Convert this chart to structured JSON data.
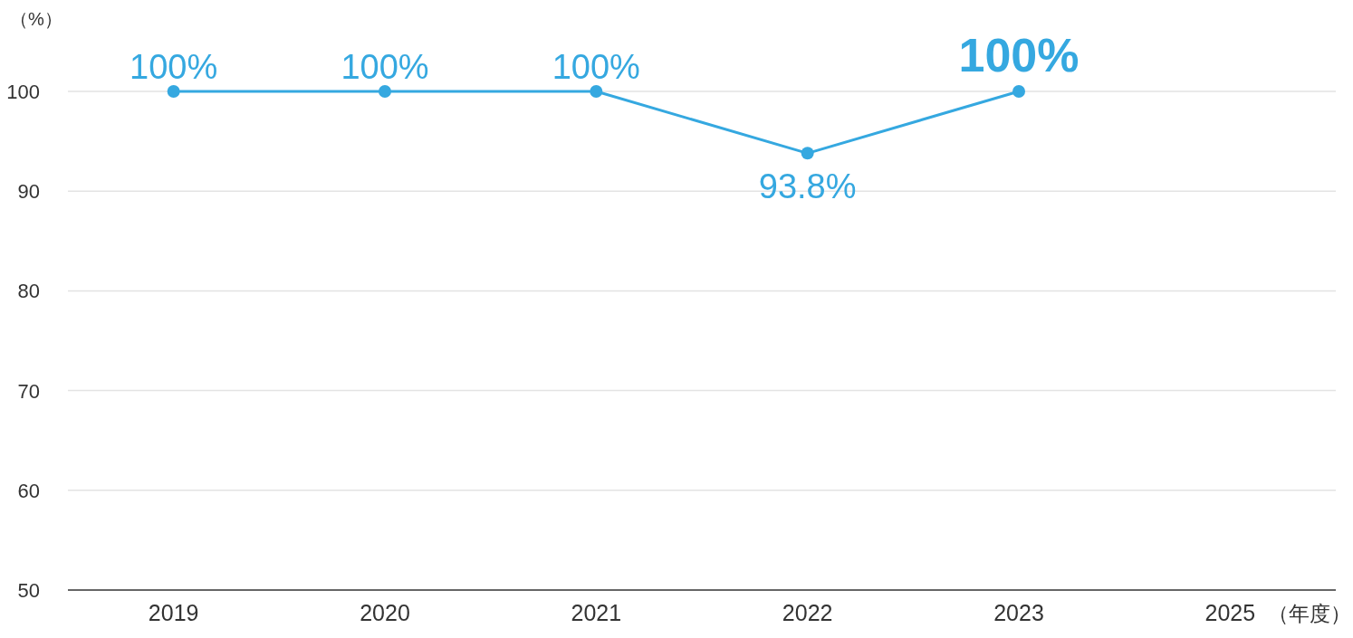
{
  "chart_data": {
    "type": "line",
    "categories": [
      "2019",
      "2020",
      "2021",
      "2022",
      "2023",
      "2025"
    ],
    "values": [
      100,
      100,
      100,
      93.8,
      100,
      null
    ],
    "value_labels": [
      "100%",
      "100%",
      "100%",
      "93.8%",
      "100%",
      null
    ],
    "color": "#35a8e0",
    "ylim": [
      50,
      100
    ],
    "yticks": [
      50,
      60,
      70,
      80,
      90,
      100
    ],
    "ylabel": "（%）",
    "xlabel": "（年度）",
    "grid": "y",
    "marker": "circle",
    "line_style": "solid"
  }
}
